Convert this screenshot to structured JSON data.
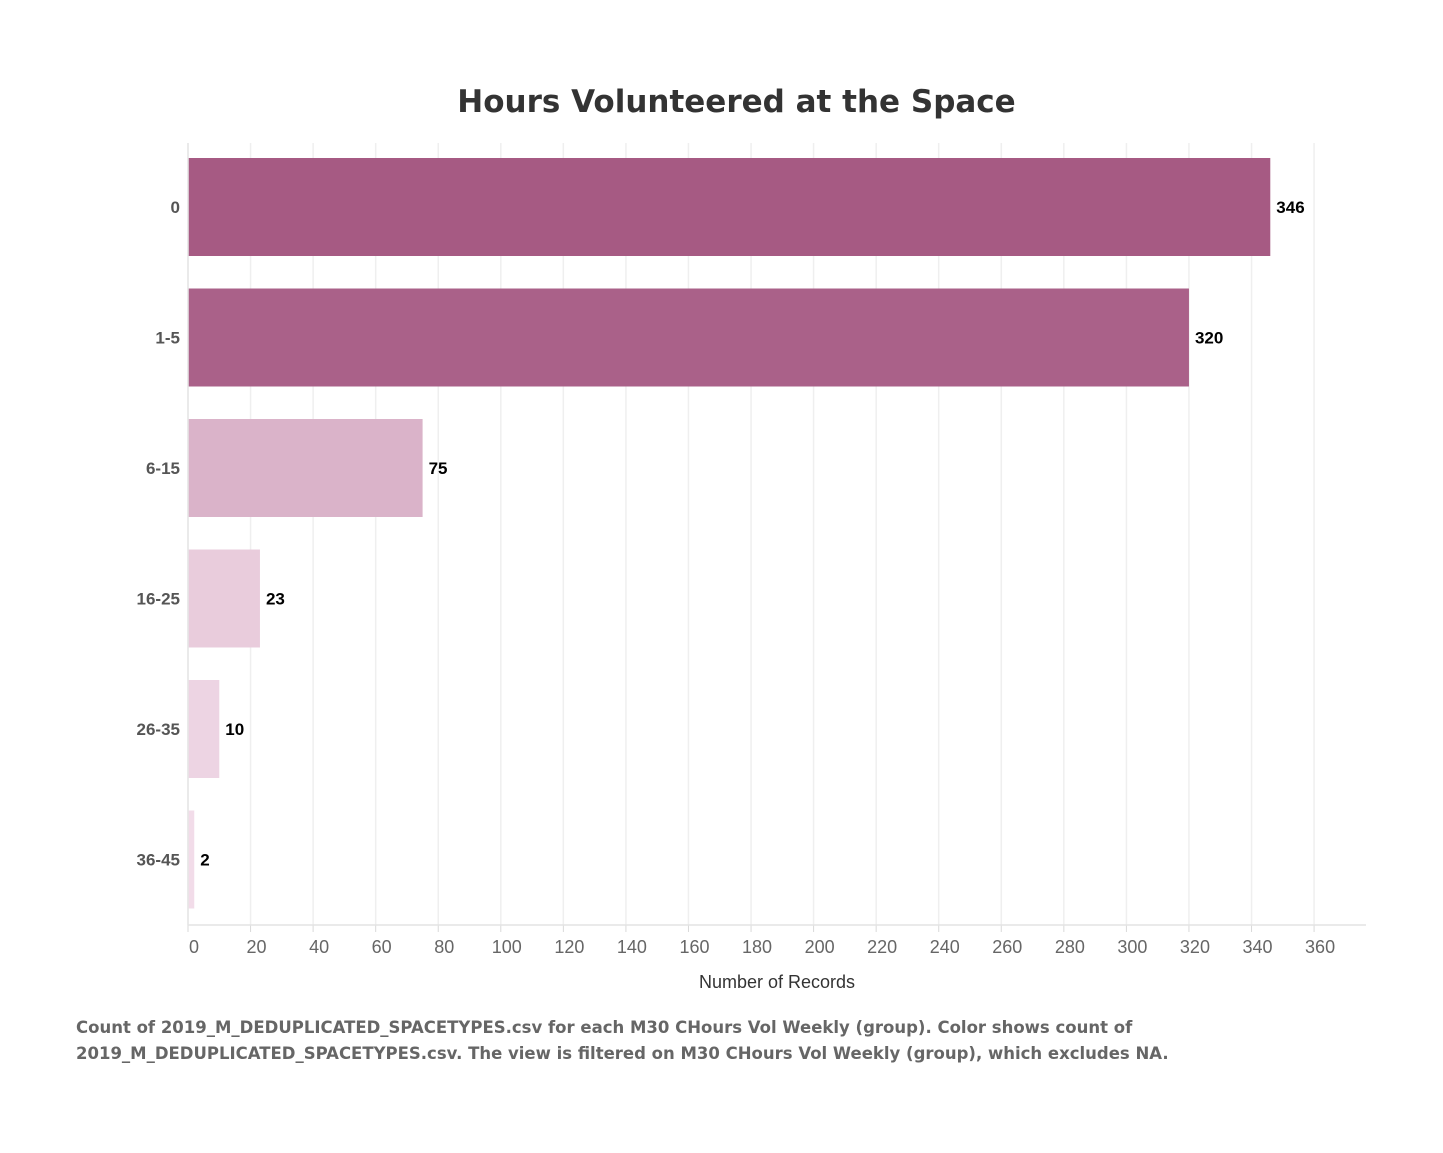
{
  "chart_data": {
    "type": "bar",
    "orientation": "horizontal",
    "title": "Hours Volunteered at the Space",
    "xlabel": "Number of Records",
    "ylabel": "",
    "categories": [
      "0",
      "1-5",
      "6-15",
      "16-25",
      "26-35",
      "36-45"
    ],
    "values": [
      346,
      320,
      75,
      23,
      10,
      2
    ],
    "data_labels": [
      "346",
      "320",
      "75",
      "23",
      "10",
      "2"
    ],
    "xlim": [
      0,
      378
    ],
    "xticks": [
      0,
      20,
      40,
      60,
      80,
      100,
      120,
      140,
      160,
      180,
      200,
      220,
      240,
      260,
      280,
      300,
      320,
      340,
      360
    ],
    "grid": true,
    "color_scale": {
      "low": "#f2dce9",
      "high": "#a65a83"
    }
  },
  "caption": {
    "line1": "Count of 2019_M_DEDUPLICATED_SPACETYPES.csv for each M30 CHours Vol Weekly (group).  Color shows count of",
    "line2": "2019_M_DEDUPLICATED_SPACETYPES.csv. The view is filtered on M30 CHours Vol Weekly (group), which excludes NA."
  }
}
